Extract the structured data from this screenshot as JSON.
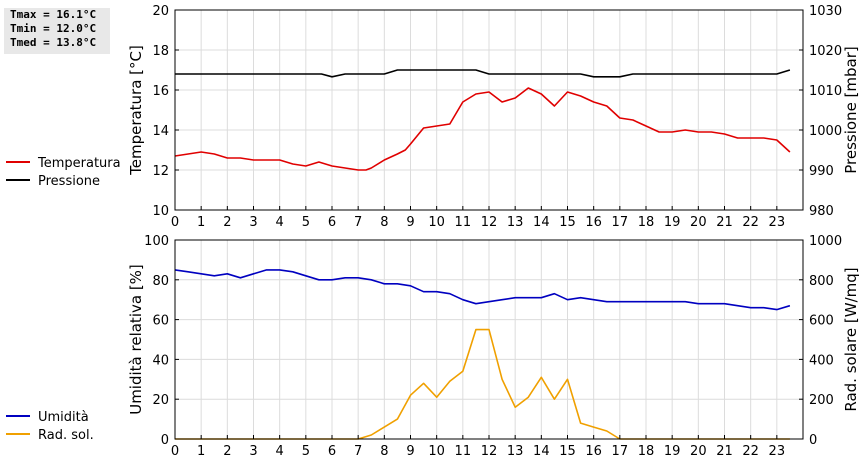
{
  "stats": {
    "tmax": "Tmax = 16.1°C",
    "tmin": "Tmin = 12.0°C",
    "tmed": "Tmed = 13.8°C"
  },
  "chart_data": [
    {
      "type": "line",
      "x_ticks": [
        0,
        1,
        2,
        3,
        4,
        5,
        6,
        7,
        8,
        9,
        10,
        11,
        12,
        13,
        14,
        15,
        16,
        17,
        18,
        19,
        20,
        21,
        22,
        23
      ],
      "xlim": [
        0,
        24
      ],
      "ylabel": "Temperatura [°C]",
      "ylim": [
        10,
        20
      ],
      "y_ticks": [
        10,
        12,
        14,
        16,
        18,
        20
      ],
      "y2label": "Pressione [mbar]",
      "y2lim": [
        980,
        1030
      ],
      "y2_ticks": [
        980,
        990,
        1000,
        1010,
        1020,
        1030
      ],
      "grid": true,
      "legend_position": "left",
      "series": [
        {
          "name": "Temperatura",
          "color": "#e00000",
          "axis": "left",
          "x": [
            0,
            0.5,
            1,
            1.5,
            2,
            2.5,
            3,
            3.5,
            4,
            4.5,
            5,
            5.5,
            6,
            6.5,
            7,
            7.3,
            7.5,
            8,
            8.5,
            8.8,
            9,
            9.5,
            10,
            10.5,
            11,
            11.5,
            12,
            12.5,
            13,
            13.5,
            14,
            14.5,
            15,
            15.5,
            16,
            16.5,
            17,
            17.5,
            18,
            18.5,
            19,
            19.5,
            20,
            20.5,
            21,
            21.5,
            22,
            22.5,
            23,
            23.5
          ],
          "y": [
            12.7,
            12.8,
            12.9,
            12.8,
            12.6,
            12.6,
            12.5,
            12.5,
            12.5,
            12.3,
            12.2,
            12.4,
            12.2,
            12.1,
            12.0,
            12.0,
            12.1,
            12.5,
            12.8,
            13.0,
            13.3,
            14.1,
            14.2,
            14.3,
            15.4,
            15.8,
            15.9,
            15.4,
            15.6,
            16.1,
            15.8,
            15.2,
            15.9,
            15.7,
            15.4,
            15.2,
            14.6,
            14.5,
            14.2,
            13.9,
            13.9,
            14.0,
            13.9,
            13.9,
            13.8,
            13.6,
            13.6,
            13.6,
            13.5,
            12.9
          ]
        },
        {
          "name": "Pressione",
          "color": "#000000",
          "axis": "right",
          "x": [
            0,
            1,
            2,
            3,
            4,
            5,
            5.6,
            6,
            6.5,
            7,
            7.5,
            8,
            8.5,
            9,
            10,
            11,
            11.5,
            12,
            13,
            14,
            15,
            15.5,
            16,
            16.5,
            17,
            17.5,
            18,
            19,
            20,
            21,
            22,
            23,
            23.5
          ],
          "y": [
            1014,
            1014,
            1014,
            1014,
            1014,
            1014,
            1014,
            1013.3,
            1014,
            1014,
            1014,
            1014,
            1015,
            1015,
            1015,
            1015,
            1015,
            1014,
            1014,
            1014,
            1014,
            1014,
            1013.3,
            1013.3,
            1013.3,
            1014,
            1014,
            1014,
            1014,
            1014,
            1014,
            1014,
            1015
          ]
        }
      ]
    },
    {
      "type": "line",
      "x_ticks": [
        0,
        1,
        2,
        3,
        4,
        5,
        6,
        7,
        8,
        9,
        10,
        11,
        12,
        13,
        14,
        15,
        16,
        17,
        18,
        19,
        20,
        21,
        22,
        23
      ],
      "xlim": [
        0,
        24
      ],
      "ylabel": "Umidità relativa [%]",
      "ylim": [
        0,
        100
      ],
      "y_ticks": [
        0,
        20,
        40,
        60,
        80,
        100
      ],
      "y2label": "Rad. solare [W/mq]",
      "y2lim": [
        0,
        1000
      ],
      "y2_ticks": [
        0,
        200,
        400,
        600,
        800,
        1000
      ],
      "grid": true,
      "legend_position": "left",
      "series": [
        {
          "name": "Umidità",
          "color": "#0000c0",
          "axis": "left",
          "x": [
            0,
            0.5,
            1,
            1.5,
            2,
            2.5,
            3,
            3.5,
            4,
            4.5,
            5,
            5.5,
            6,
            6.5,
            7,
            7.5,
            8,
            8.5,
            9,
            9.5,
            10,
            10.5,
            11,
            11.5,
            12,
            12.5,
            13,
            13.5,
            14,
            14.5,
            15,
            15.5,
            16,
            16.5,
            17,
            17.5,
            18,
            18.5,
            19,
            19.5,
            20,
            20.5,
            21,
            21.5,
            22,
            22.5,
            23,
            23.5
          ],
          "y": [
            85,
            84,
            83,
            82,
            83,
            81,
            83,
            85,
            85,
            84,
            82,
            80,
            80,
            81,
            81,
            80,
            78,
            78,
            77,
            74,
            74,
            73,
            70,
            68,
            69,
            70,
            71,
            71,
            71,
            73,
            70,
            71,
            70,
            69,
            69,
            69,
            69,
            69,
            69,
            69,
            68,
            68,
            68,
            67,
            66,
            66,
            65,
            67
          ]
        },
        {
          "name": "Rad. sol.",
          "color": "#f0a000",
          "axis": "right",
          "x": [
            0,
            1,
            2,
            3,
            4,
            5,
            6,
            7,
            7.5,
            8,
            8.5,
            9,
            9.5,
            10,
            10.5,
            11,
            11.5,
            12,
            12.5,
            13,
            13.5,
            14,
            14.5,
            15,
            15.5,
            16,
            16.5,
            17,
            18,
            19,
            20,
            21,
            22,
            23,
            23.5
          ],
          "y": [
            0,
            0,
            0,
            0,
            0,
            0,
            0,
            0,
            20,
            60,
            100,
            220,
            280,
            210,
            290,
            340,
            550,
            550,
            300,
            160,
            210,
            310,
            200,
            300,
            80,
            60,
            40,
            0,
            0,
            0,
            0,
            0,
            0,
            0,
            0
          ]
        }
      ]
    }
  ]
}
